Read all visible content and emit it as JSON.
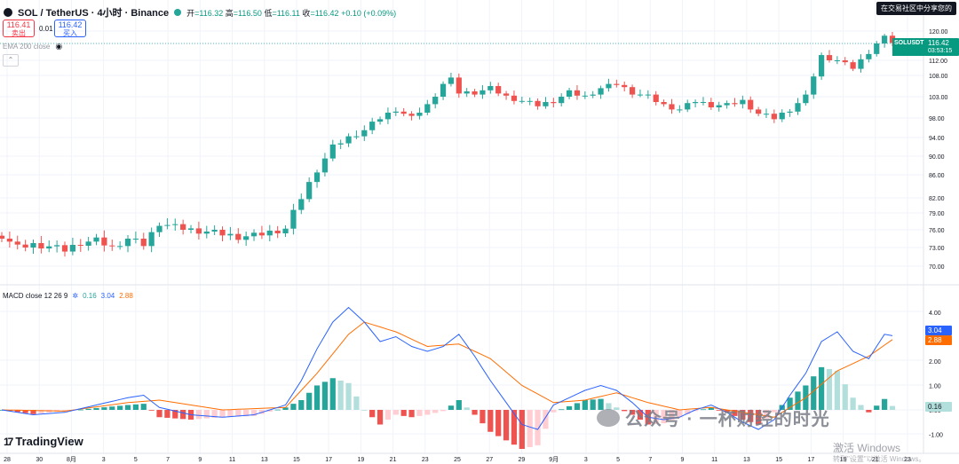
{
  "header": {
    "symbol": "SOL / TetherUS · 4小时 · Binance",
    "open_label": "开",
    "open": "=116.32",
    "high_label": "高",
    "high": "=116.50",
    "low_label": "低",
    "low": "=116.11",
    "close_label": "收",
    "close": "=116.42",
    "change": "+0.10 (+0.09%)"
  },
  "trade": {
    "sell_price": "116.41",
    "sell_label": "卖出",
    "spread": "0.01",
    "buy_price": "116.42",
    "buy_label": "买入"
  },
  "indicator_ema": "EMA 200 close",
  "indicator_macd": {
    "name": "MACD close 12 26 9",
    "hist": "0.16",
    "macd": "3.04",
    "signal": "2.88"
  },
  "corner_button": "在交易社区中分享您的",
  "price_axis": [
    "120.00",
    "116.00",
    "112.00",
    "108.00",
    "103.00",
    "98.00",
    "94.00",
    "90.00",
    "86.00",
    "82.00",
    "79.00",
    "76.00",
    "73.00",
    "70.00"
  ],
  "macd_axis": [
    "4.00",
    "2.00",
    "1.00",
    "0.00",
    "-1.00"
  ],
  "x_axis": [
    "28",
    "30",
    "8月",
    "3",
    "5",
    "7",
    "9",
    "11",
    "13",
    "15",
    "17",
    "19",
    "21",
    "23",
    "25",
    "27",
    "29",
    "9月",
    "3",
    "5",
    "7",
    "9",
    "11",
    "13",
    "15",
    "17",
    "19",
    "21",
    "23"
  ],
  "last_price": {
    "symbol": "SOLUSDT",
    "price": "116.42",
    "countdown": "03:53:15"
  },
  "branding": {
    "logo": "TradingView",
    "watermark": "公众号 · 一杯财经的时光",
    "activate1": "激活 Windows",
    "activate2": "转到\"设置\"以激活 Windows。"
  },
  "colors": {
    "up": "#26a69a",
    "down": "#ef5350",
    "macd": "#2962ff",
    "signal": "#ff6d00"
  },
  "chart_data": {
    "type": "candlestick",
    "timeframe": "4h",
    "y_axis_ticks": [
      120,
      116,
      112,
      108,
      103,
      98,
      94,
      90,
      86,
      82,
      79,
      76,
      73,
      70
    ],
    "close_path": [
      [
        0,
        75
      ],
      [
        2,
        73
      ],
      [
        4,
        73.5
      ],
      [
        6,
        73.2
      ],
      [
        8,
        72.6
      ],
      [
        10,
        73.8
      ],
      [
        12,
        74.2
      ],
      [
        14,
        73
      ],
      [
        16,
        74.5
      ],
      [
        18,
        73.5
      ],
      [
        20,
        77.2
      ],
      [
        22,
        76.5
      ],
      [
        24,
        76
      ],
      [
        26,
        75.7
      ],
      [
        28,
        75.3
      ],
      [
        30,
        74.8
      ],
      [
        32,
        75
      ],
      [
        34,
        75.6
      ],
      [
        36,
        76.2
      ],
      [
        38,
        82
      ],
      [
        40,
        87
      ],
      [
        42,
        92
      ],
      [
        44,
        94
      ],
      [
        46,
        95.5
      ],
      [
        48,
        98
      ],
      [
        50,
        100
      ],
      [
        52,
        98
      ],
      [
        54,
        101
      ],
      [
        56,
        106
      ],
      [
        57,
        107
      ],
      [
        58,
        104
      ],
      [
        60,
        104
      ],
      [
        62,
        105
      ],
      [
        64,
        103
      ],
      [
        66,
        102
      ],
      [
        68,
        101
      ],
      [
        70,
        102
      ],
      [
        72,
        104
      ],
      [
        74,
        103
      ],
      [
        76,
        105
      ],
      [
        78,
        106
      ],
      [
        80,
        104
      ],
      [
        82,
        103
      ],
      [
        84,
        101
      ],
      [
        86,
        100
      ],
      [
        88,
        102
      ],
      [
        90,
        101
      ],
      [
        92,
        101
      ],
      [
        94,
        102
      ],
      [
        96,
        99
      ],
      [
        98,
        98
      ],
      [
        100,
        100
      ],
      [
        102,
        103
      ],
      [
        104,
        113
      ],
      [
        106,
        112
      ],
      [
        108,
        110
      ],
      [
        110,
        114
      ],
      [
        112,
        118
      ],
      [
        113,
        116.42
      ]
    ],
    "macd_path": [
      [
        0,
        0
      ],
      [
        4,
        -0.2
      ],
      [
        8,
        -0.1
      ],
      [
        12,
        0.2
      ],
      [
        16,
        0.5
      ],
      [
        18,
        0.6
      ],
      [
        20,
        0.1
      ],
      [
        24,
        -0.2
      ],
      [
        28,
        -0.3
      ],
      [
        32,
        -0.2
      ],
      [
        36,
        0.2
      ],
      [
        38,
        1.2
      ],
      [
        40,
        2.5
      ],
      [
        42,
        3.6
      ],
      [
        44,
        4.2
      ],
      [
        46,
        3.6
      ],
      [
        48,
        2.8
      ],
      [
        50,
        3
      ],
      [
        52,
        2.6
      ],
      [
        54,
        2.4
      ],
      [
        56,
        2.6
      ],
      [
        58,
        3.1
      ],
      [
        60,
        2.2
      ],
      [
        62,
        1.2
      ],
      [
        64,
        0.3
      ],
      [
        66,
        -0.6
      ],
      [
        68,
        -0.8
      ],
      [
        70,
        0.2
      ],
      [
        72,
        0.5
      ],
      [
        74,
        0.8
      ],
      [
        76,
        1
      ],
      [
        78,
        0.8
      ],
      [
        80,
        0.3
      ],
      [
        82,
        -0.3
      ],
      [
        84,
        -0.4
      ],
      [
        86,
        -0.3
      ],
      [
        88,
        0
      ],
      [
        90,
        0.2
      ],
      [
        92,
        -0.1
      ],
      [
        94,
        -0.5
      ],
      [
        96,
        -0.8
      ],
      [
        98,
        -0.4
      ],
      [
        100,
        0.6
      ],
      [
        102,
        1.5
      ],
      [
        104,
        2.8
      ],
      [
        106,
        3.2
      ],
      [
        108,
        2.4
      ],
      [
        110,
        2.1
      ],
      [
        112,
        3.1
      ],
      [
        113,
        3.04
      ]
    ],
    "signal_path": [
      [
        0,
        0
      ],
      [
        8,
        -0.05
      ],
      [
        16,
        0.3
      ],
      [
        20,
        0.4
      ],
      [
        28,
        0
      ],
      [
        36,
        0.1
      ],
      [
        40,
        1.5
      ],
      [
        44,
        3.1
      ],
      [
        46,
        3.6
      ],
      [
        50,
        3.2
      ],
      [
        54,
        2.6
      ],
      [
        58,
        2.7
      ],
      [
        62,
        2.1
      ],
      [
        66,
        1
      ],
      [
        70,
        0.3
      ],
      [
        74,
        0.4
      ],
      [
        78,
        0.7
      ],
      [
        82,
        0.3
      ],
      [
        86,
        0
      ],
      [
        90,
        0.1
      ],
      [
        94,
        -0.1
      ],
      [
        98,
        -0.3
      ],
      [
        102,
        0.5
      ],
      [
        106,
        1.6
      ],
      [
        110,
        2.2
      ],
      [
        113,
        2.88
      ]
    ]
  }
}
